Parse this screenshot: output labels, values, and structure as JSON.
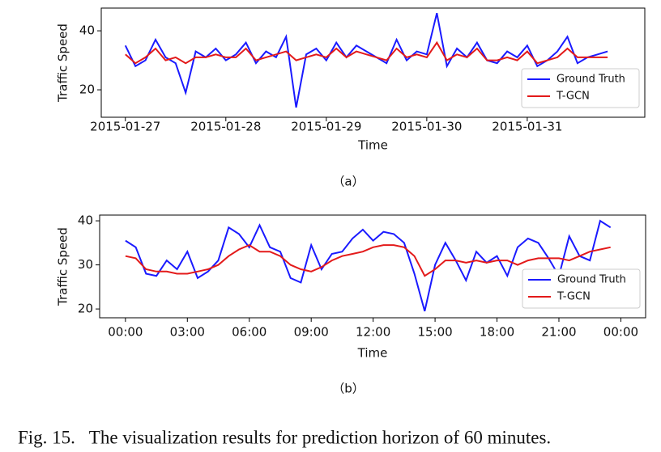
{
  "figure_caption": "Fig. 15.   The visualization results for prediction horizon of 60 minutes.",
  "chart_data": [
    {
      "type": "line",
      "caption": "（a）",
      "x_label": "Time",
      "y_label": "Traffic Speed",
      "x": [
        0,
        0.1,
        0.2,
        0.3,
        0.4,
        0.5,
        0.6,
        0.7,
        0.8,
        0.9,
        1,
        1.1,
        1.2,
        1.3,
        1.4,
        1.5,
        1.6,
        1.7,
        1.8,
        1.9,
        2,
        2.1,
        2.2,
        2.3,
        2.4,
        2.5,
        2.6,
        2.7,
        2.8,
        2.9,
        3,
        3.1,
        3.2,
        3.3,
        3.4,
        3.5,
        3.6,
        3.7,
        3.8,
        3.9,
        4,
        4.1,
        4.2,
        4.3,
        4.4,
        4.5,
        4.6,
        4.7,
        4.8
      ],
      "series": [
        {
          "name": "Ground Truth",
          "color": "#1a1aff",
          "values": [
            35,
            28,
            30,
            37,
            31,
            29,
            19,
            33,
            31,
            34,
            30,
            32,
            36,
            29,
            33,
            31,
            38,
            14,
            32,
            34,
            30,
            36,
            31,
            35,
            33,
            31,
            29,
            37,
            30,
            33,
            32,
            46,
            28,
            34,
            31,
            36,
            30,
            29,
            33,
            31,
            35,
            28,
            30,
            33,
            38,
            29,
            31,
            32,
            33
          ]
        },
        {
          "name": "T-GCN",
          "color": "#e31a1a",
          "values": [
            32,
            29,
            31,
            34,
            30,
            31,
            29,
            31,
            31,
            32,
            31,
            31,
            34,
            30,
            31,
            32,
            33,
            30,
            31,
            32,
            31,
            34,
            31,
            33,
            32,
            31,
            30,
            34,
            31,
            32,
            31,
            36,
            30,
            32,
            31,
            34,
            30,
            30,
            31,
            30,
            33,
            29,
            30,
            31,
            34,
            31,
            31,
            31,
            31
          ]
        }
      ],
      "xlim": [
        -0.24,
        5.17
      ],
      "ylim": [
        10.7,
        47.7
      ],
      "xticks": [
        {
          "value": 0,
          "label": "2015-01-27"
        },
        {
          "value": 1,
          "label": "2015-01-28"
        },
        {
          "value": 2,
          "label": "2015-01-29"
        },
        {
          "value": 3,
          "label": "2015-01-30"
        },
        {
          "value": 4,
          "label": "2015-01-31"
        }
      ],
      "yticks": [
        20,
        40
      ],
      "legend": "lower right"
    },
    {
      "type": "line",
      "caption": "（b）",
      "x_label": "Time",
      "y_label": "Traffic Speed",
      "x": [
        0,
        0.5,
        1,
        1.5,
        2,
        2.5,
        3,
        3.5,
        4,
        4.5,
        5,
        5.5,
        6,
        6.5,
        7,
        7.5,
        8,
        8.5,
        9,
        9.5,
        10,
        10.5,
        11,
        11.5,
        12,
        12.5,
        13,
        13.5,
        14,
        14.5,
        15,
        15.5,
        16,
        16.5,
        17,
        17.5,
        18,
        18.5,
        19,
        19.5,
        20,
        20.5,
        21,
        21.5,
        22,
        22.5,
        23,
        23.5
      ],
      "series": [
        {
          "name": "Ground Truth",
          "color": "#1a1aff",
          "values": [
            35.5,
            34,
            28,
            27.5,
            31,
            29,
            33,
            27,
            28.5,
            31,
            38.5,
            37,
            34,
            39,
            34,
            33,
            27,
            26,
            34.5,
            29,
            32.5,
            33,
            36,
            38,
            35.5,
            37.5,
            37,
            35,
            28,
            19.5,
            30,
            35,
            31,
            26.5,
            33,
            30.5,
            32,
            27.5,
            34,
            36,
            35,
            31.5,
            27.5,
            36.5,
            32,
            31,
            40,
            38.5
          ]
        },
        {
          "name": "T-GCN",
          "color": "#e31a1a",
          "values": [
            32,
            31.5,
            29,
            28.5,
            28.5,
            28,
            28,
            28.5,
            29,
            30,
            32,
            33.5,
            34.5,
            33,
            33,
            32,
            30,
            29,
            28.5,
            29.5,
            31,
            32,
            32.5,
            33,
            34,
            34.5,
            34.5,
            34,
            32,
            27.5,
            29,
            31,
            31,
            30.5,
            31,
            30.5,
            31,
            31,
            30,
            31,
            31.5,
            31.5,
            31.5,
            31,
            32,
            33,
            33.5,
            34
          ]
        }
      ],
      "xlim": [
        -1.25,
        25.2
      ],
      "ylim": [
        18,
        41.3
      ],
      "xticks": [
        {
          "value": 0,
          "label": "00:00"
        },
        {
          "value": 3,
          "label": "03:00"
        },
        {
          "value": 6,
          "label": "06:00"
        },
        {
          "value": 9,
          "label": "09:00"
        },
        {
          "value": 12,
          "label": "12:00"
        },
        {
          "value": 15,
          "label": "15:00"
        },
        {
          "value": 18,
          "label": "18:00"
        },
        {
          "value": 21,
          "label": "21:00"
        },
        {
          "value": 24,
          "label": "00:00"
        }
      ],
      "yticks": [
        20,
        30,
        40
      ],
      "legend": "lower right"
    }
  ]
}
